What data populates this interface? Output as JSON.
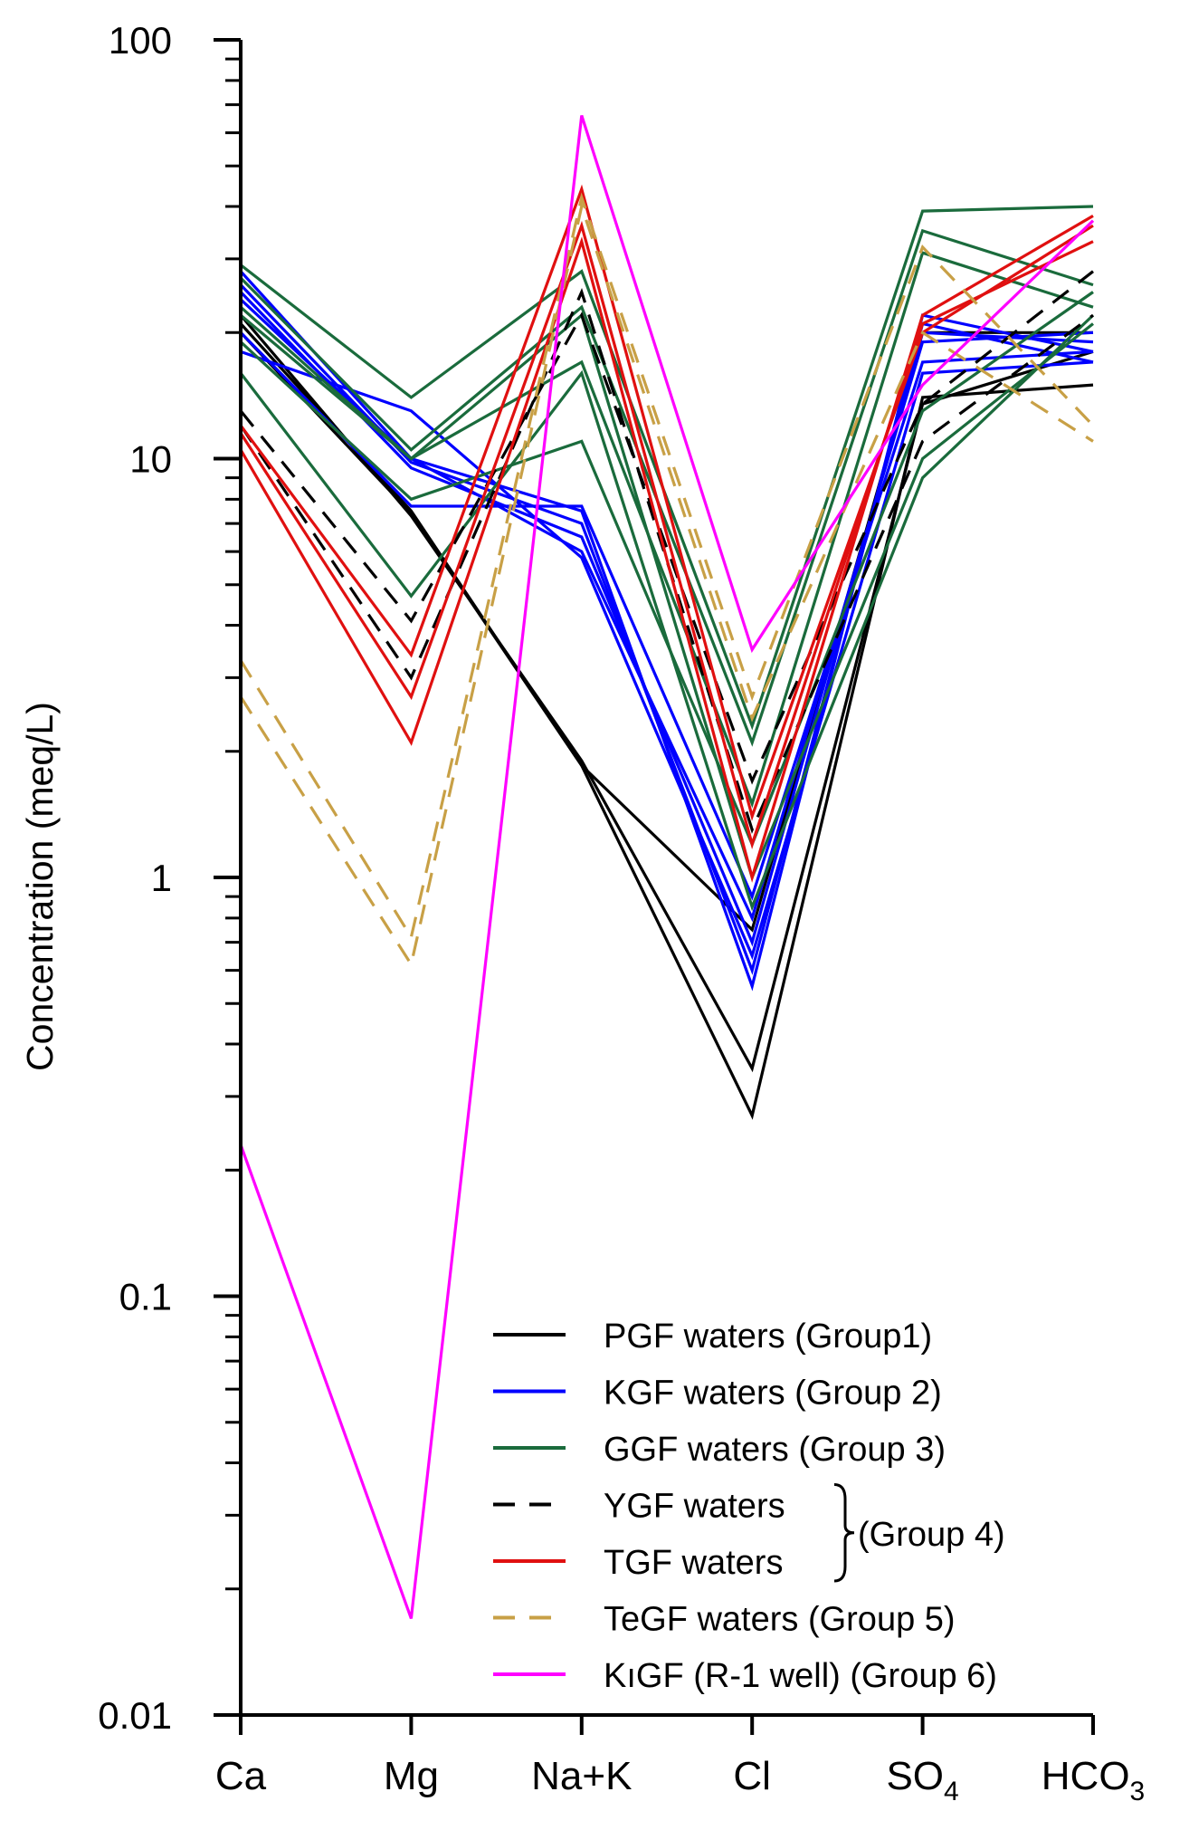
{
  "chart_data": {
    "type": "line",
    "title": "",
    "xlabel": "",
    "ylabel": "Concentration (meq/L)",
    "yscale": "log",
    "ylim": [
      0.01,
      100
    ],
    "yticks": [
      {
        "value": 100,
        "label": "100"
      },
      {
        "value": 10,
        "label": "10"
      },
      {
        "value": 1,
        "label": "1"
      },
      {
        "value": 0.1,
        "label": "0.1"
      },
      {
        "value": 0.01,
        "label": "0.01"
      }
    ],
    "categories": [
      {
        "main": "Ca",
        "sub": ""
      },
      {
        "main": "Mg",
        "sub": ""
      },
      {
        "main": "Na+K",
        "sub": ""
      },
      {
        "main": "Cl",
        "sub": ""
      },
      {
        "main": "SO",
        "sub": "4"
      },
      {
        "main": "HCO",
        "sub": "3"
      }
    ],
    "groups": [
      {
        "id": "pgf",
        "label": "PGF waters (Group1)",
        "color": "#000000",
        "dash": false
      },
      {
        "id": "kgf",
        "label": "KGF waters (Group 2)",
        "color": "#0000ff",
        "dash": false
      },
      {
        "id": "ggf",
        "label": "GGF waters (Group 3)",
        "color": "#1a6b3c",
        "dash": false
      },
      {
        "id": "ygf",
        "label": "YGF waters",
        "color": "#000000",
        "dash": true
      },
      {
        "id": "tgf",
        "label": "TGF waters",
        "color": "#e01010",
        "dash": false
      },
      {
        "id": "tegf",
        "label": "TeGF waters (Group 5)",
        "color": "#c8a046",
        "dash": true
      },
      {
        "id": "kigf",
        "label": "KıGF (R-1 well) (Group 6)",
        "color": "#ff00ff",
        "dash": false
      }
    ],
    "brace_label": "(Group 4)",
    "series": [
      {
        "group": "pgf",
        "values": [
          21,
          7.5,
          1.85,
          0.27,
          14,
          15
        ]
      },
      {
        "group": "pgf",
        "values": [
          22,
          7.3,
          1.9,
          0.35,
          13.5,
          18
        ]
      },
      {
        "group": "pgf",
        "values": [
          20,
          7.4,
          1.85,
          0.75,
          20,
          20
        ]
      },
      {
        "group": "kgf",
        "values": [
          28,
          10,
          7.5,
          0.55,
          22,
          18
        ]
      },
      {
        "group": "kgf",
        "values": [
          26,
          9.8,
          7.0,
          0.6,
          21,
          17
        ]
      },
      {
        "group": "kgf",
        "values": [
          25,
          9.5,
          6.5,
          0.7,
          20,
          19
        ]
      },
      {
        "group": "kgf",
        "values": [
          24,
          10,
          6.0,
          0.8,
          19,
          20
        ]
      },
      {
        "group": "kgf",
        "values": [
          20,
          7.7,
          7.7,
          0.9,
          17,
          18
        ]
      },
      {
        "group": "kgf",
        "values": [
          18,
          13,
          5.8,
          0.65,
          16,
          17
        ]
      },
      {
        "group": "ggf",
        "values": [
          29,
          14,
          28,
          2.3,
          39,
          40
        ]
      },
      {
        "group": "ggf",
        "values": [
          27,
          10.5,
          23,
          2.1,
          35,
          26
        ]
      },
      {
        "group": "ggf",
        "values": [
          23,
          10,
          17,
          1.5,
          31,
          23
        ]
      },
      {
        "group": "ggf",
        "values": [
          19,
          8,
          11,
          1.2,
          13,
          25
        ]
      },
      {
        "group": "ggf",
        "values": [
          16,
          4.7,
          16,
          0.85,
          9,
          22
        ]
      },
      {
        "group": "ggf",
        "values": [
          22,
          10,
          22,
          1.0,
          10,
          21
        ]
      },
      {
        "group": "ygf",
        "values": [
          13,
          4.1,
          22,
          1.7,
          13.5,
          28
        ]
      },
      {
        "group": "ygf",
        "values": [
          12,
          3.0,
          25,
          1.3,
          11,
          22
        ]
      },
      {
        "group": "tgf",
        "values": [
          12,
          3.4,
          44,
          1.4,
          20,
          36
        ]
      },
      {
        "group": "tgf",
        "values": [
          11.5,
          2.7,
          36,
          1.2,
          21,
          33
        ]
      },
      {
        "group": "tgf",
        "values": [
          10.5,
          2.1,
          33,
          1.0,
          22,
          38
        ]
      },
      {
        "group": "tegf",
        "values": [
          3.3,
          0.72,
          42,
          2.7,
          32,
          12
        ]
      },
      {
        "group": "tegf",
        "values": [
          2.7,
          0.62,
          40,
          2.4,
          20,
          11
        ]
      },
      {
        "group": "kigf",
        "values": [
          0.23,
          0.017,
          66,
          3.5,
          15,
          37
        ]
      }
    ]
  }
}
